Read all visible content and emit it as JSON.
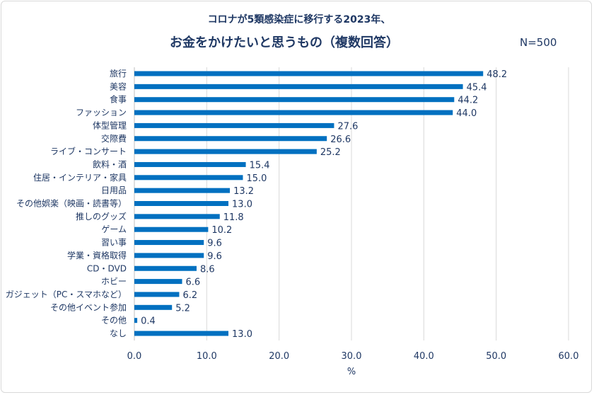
{
  "chart_data": {
    "type": "bar",
    "orientation": "horizontal",
    "title": "コロナが5類感染症に移行する2023年、",
    "subtitle": "お金をかけたいと思うもの（複数回答）",
    "annotation": "N=500",
    "categories": [
      "旅行",
      "美容",
      "食事",
      "ファッション",
      "体型管理",
      "交際費",
      "ライブ・コンサート",
      "飲料・酒",
      "住居・インテリア・家具",
      "日用品",
      "その他娯楽（映画・読書等）",
      "推しのグッズ",
      "ゲーム",
      "習い事",
      "学業・資格取得",
      "CD・DVD",
      "ホビー",
      "ガジェット（PC・スマホなど）",
      "その他イベント参加",
      "その他",
      "なし"
    ],
    "values": [
      48.2,
      45.4,
      44.2,
      44.0,
      27.6,
      26.6,
      25.2,
      15.4,
      15.0,
      13.2,
      13.0,
      11.8,
      10.2,
      9.6,
      9.6,
      8.6,
      6.6,
      6.2,
      5.2,
      0.4,
      13.0
    ],
    "value_labels": [
      "48.2",
      "45.4",
      "44.2",
      "44.0",
      "27.6",
      "26.6",
      "25.2",
      "15.4",
      "15.0",
      "13.2",
      "13.0",
      "11.8",
      "10.2",
      "9.6",
      "9.6",
      "8.6",
      "6.6",
      "6.2",
      "5.2",
      "0.4",
      "13.0"
    ],
    "xlabel": "%",
    "xlim": [
      0,
      60
    ],
    "xticks": [
      "0.0",
      "10.0",
      "20.0",
      "30.0",
      "40.0",
      "50.0",
      "60.0"
    ],
    "grid": "vertical",
    "bar_color": "#0070c0",
    "text_color": "#1f3864",
    "grid_color": "#d9d9d9"
  }
}
